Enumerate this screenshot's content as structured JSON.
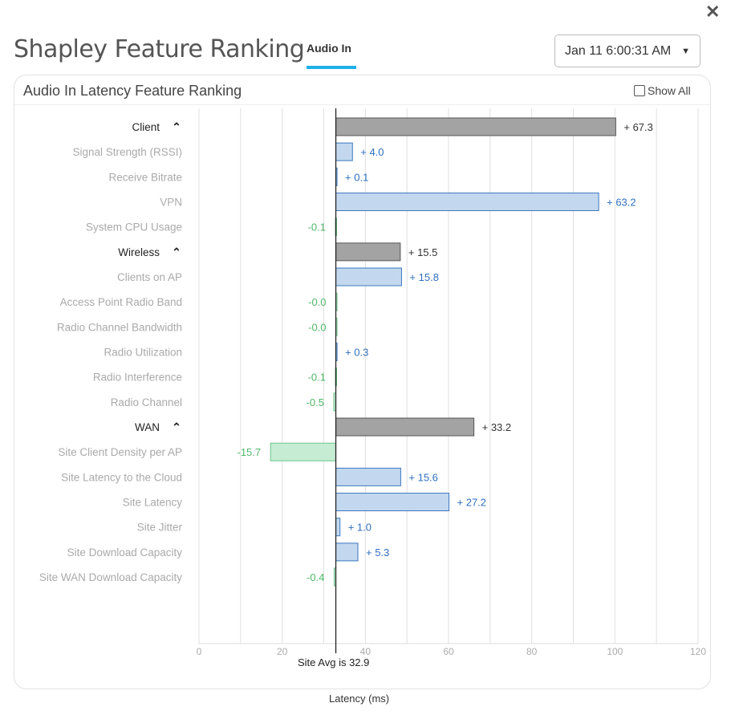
{
  "header": {
    "title": "Shapley Feature Ranking",
    "tab": "Audio In",
    "date": "Jan 11 6:00:31 AM",
    "close": "✕"
  },
  "panel": {
    "title": "Audio In Latency Feature Ranking",
    "show_all": "Show All"
  },
  "colors": {
    "group": "#a3a3a3",
    "positive": "#c3d8ee",
    "positive_border": "#3c78c0",
    "negative": "#c6ecd4",
    "negative_border": "#6dc48c"
  },
  "chart_data": {
    "type": "bar",
    "orientation": "horizontal",
    "baseline": 32.9,
    "baseline_label": "Site Avg is 32.9",
    "xlabel": "Latency (ms)",
    "xlim": [
      0,
      120
    ],
    "xticks": [
      0,
      20,
      40,
      60,
      80,
      100,
      120
    ],
    "grid": true,
    "rows": [
      {
        "label": "Client",
        "group": true,
        "value": 67.3,
        "text": "+ 67.3"
      },
      {
        "label": "Signal Strength (RSSI)",
        "value": 4.0,
        "text": "+ 4.0"
      },
      {
        "label": "Receive Bitrate",
        "value": 0.1,
        "text": "+ 0.1"
      },
      {
        "label": "VPN",
        "value": 63.2,
        "text": "+ 63.2"
      },
      {
        "label": "System CPU Usage",
        "value": -0.1,
        "text": "-0.1"
      },
      {
        "label": "Wireless",
        "group": true,
        "value": 15.5,
        "text": "+ 15.5"
      },
      {
        "label": "Clients on AP",
        "value": 15.8,
        "text": "+ 15.8"
      },
      {
        "label": "Access Point Radio Band",
        "value": -0.0,
        "text": "-0.0"
      },
      {
        "label": "Radio Channel Bandwidth",
        "value": -0.0,
        "text": "-0.0"
      },
      {
        "label": "Radio Utilization",
        "value": 0.3,
        "text": "+ 0.3"
      },
      {
        "label": "Radio Interference",
        "value": -0.1,
        "text": "-0.1"
      },
      {
        "label": "Radio Channel",
        "value": -0.5,
        "text": "-0.5"
      },
      {
        "label": "WAN",
        "group": true,
        "value": 33.2,
        "text": "+ 33.2"
      },
      {
        "label": "Site Client Density per AP",
        "value": -15.7,
        "text": "-15.7"
      },
      {
        "label": "Site Latency to the Cloud",
        "value": 15.6,
        "text": "+ 15.6"
      },
      {
        "label": "Site Latency",
        "value": 27.2,
        "text": "+ 27.2"
      },
      {
        "label": "Site Jitter",
        "value": 1.0,
        "text": "+ 1.0"
      },
      {
        "label": "Site Download Capacity",
        "value": 5.3,
        "text": "+ 5.3"
      },
      {
        "label": "Site WAN Download Capacity",
        "value": -0.4,
        "text": "-0.4"
      }
    ]
  }
}
